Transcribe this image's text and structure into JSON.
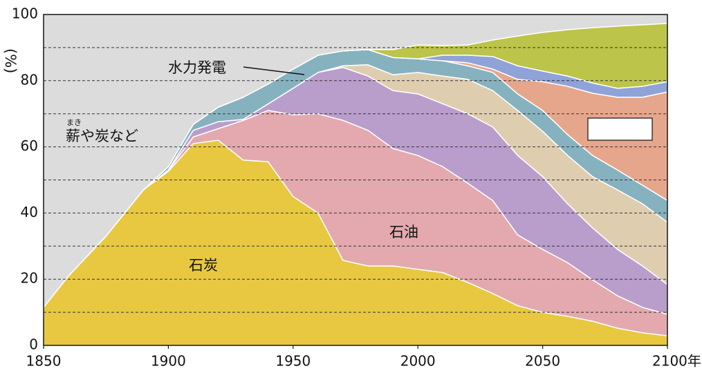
{
  "chart_data": {
    "type": "stacked_area",
    "y_label": "(%)",
    "x": [
      1850,
      1860,
      1875,
      1890,
      1900,
      1910,
      1920,
      1930,
      1940,
      1950,
      1960,
      1970,
      1980,
      1990,
      2000,
      2010,
      2020,
      2030,
      2040,
      2050,
      2060,
      2070,
      2080,
      2090,
      2100
    ],
    "series": [
      {
        "name": "石炭",
        "color": "#e8c840",
        "values": [
          11.5,
          21,
          33,
          47,
          52.6,
          61,
          62,
          56,
          55.5,
          45,
          40,
          25.7,
          24,
          24,
          23,
          22,
          19,
          15.7,
          12,
          10,
          8.8,
          7.3,
          5.2,
          3.8,
          2.9
        ]
      },
      {
        "name": "石油",
        "color": "#e3a9ae",
        "values": [
          0,
          0,
          0,
          0,
          0.4,
          2,
          3.5,
          12,
          15.5,
          24.7,
          30,
          42.3,
          41,
          35.5,
          34.4,
          32,
          30,
          28.1,
          21.4,
          19,
          16.2,
          12.5,
          9.8,
          7.7,
          6.5
        ]
      },
      {
        "color": "#b99dcb",
        "values": [
          0,
          0,
          0,
          0,
          0,
          2,
          2.1,
          0.3,
          2,
          8,
          12.5,
          16,
          16.4,
          17.5,
          18.6,
          19,
          21,
          22.2,
          24,
          22,
          17.8,
          15.7,
          14,
          12.5,
          9
        ]
      },
      {
        "color": "#dfcdb0",
        "values": [
          0,
          0,
          0,
          0,
          0,
          0,
          0,
          0,
          0,
          0,
          0,
          0.5,
          3.4,
          4.8,
          6.5,
          8.4,
          10.4,
          11,
          13.6,
          13.7,
          14.6,
          15.5,
          18,
          18.8,
          18.8
        ]
      },
      {
        "name": "水力発電",
        "color": "#86b2bf",
        "values": [
          0,
          0,
          0,
          0,
          1,
          1.8,
          4.4,
          6.7,
          6,
          5.8,
          5.2,
          4.5,
          4.6,
          5.2,
          4.1,
          4.6,
          4.1,
          5.5,
          5,
          6.3,
          6.3,
          6.4,
          6,
          5.6,
          6.6
        ]
      },
      {
        "color": "#e6a68c",
        "values": [
          0,
          0,
          0,
          0,
          0,
          0,
          0,
          0,
          0,
          0,
          0,
          0,
          0,
          0,
          0,
          0,
          0.9,
          1,
          4.4,
          8.7,
          14.6,
          18.8,
          22,
          26.6,
          32.8
        ]
      },
      {
        "color": "#8fa3d8",
        "values": [
          0,
          0,
          0,
          0,
          0,
          0,
          0,
          0,
          0,
          0,
          0,
          0,
          0,
          0,
          0,
          1.7,
          2.3,
          3.8,
          4.1,
          3.2,
          3.1,
          3.1,
          2.7,
          3.3,
          3.1
        ]
      },
      {
        "color": "#bcc44a",
        "values": [
          0,
          0,
          0,
          0,
          0,
          0,
          0,
          0,
          0,
          0,
          0,
          0,
          0,
          2.4,
          4.2,
          2.9,
          3.1,
          5,
          9,
          11.7,
          14,
          16.7,
          18.8,
          18.6,
          17.6
        ]
      },
      {
        "name": "薪や炭など",
        "ruby": "まき",
        "color": "#dcdcdc",
        "values": [
          88.5,
          79,
          67,
          53,
          46,
          33.2,
          28,
          25,
          21,
          16.5,
          12.3,
          11,
          10.6,
          10.6,
          9.2,
          9.4,
          9.2,
          7.7,
          6.5,
          5.4,
          4.6,
          4,
          3.5,
          3.1,
          2.7
        ]
      }
    ],
    "xlim": [
      1850,
      2100
    ],
    "xticks": [
      1850,
      1900,
      1950,
      2000,
      2050,
      {
        "value": 2100,
        "label": "2100年"
      }
    ],
    "ylim": [
      0,
      100
    ],
    "yticks": [
      0,
      20,
      40,
      60,
      80,
      100
    ],
    "minor_yticks": [
      10,
      30,
      50,
      70,
      90
    ],
    "grid": true
  }
}
